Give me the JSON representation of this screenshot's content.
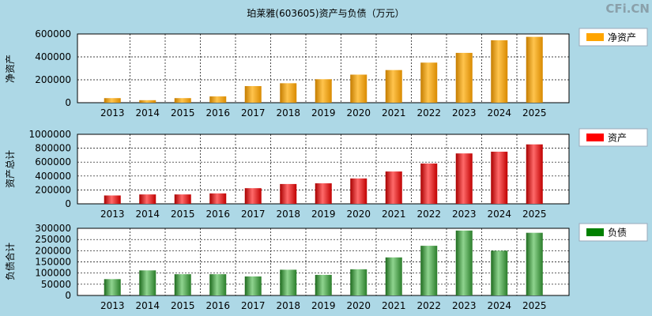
{
  "watermark": "CFi.CN",
  "chart_data": [
    {
      "type": "bar",
      "title": "珀莱雅(603605)资产与负债（万元）",
      "ylabel": "净资产",
      "legend": "净资产",
      "legend_position": "right",
      "color": "#ffa500",
      "categories": [
        "2013",
        "2014",
        "2015",
        "2016",
        "2017",
        "2018",
        "2019",
        "2020",
        "2021",
        "2022",
        "2023",
        "2024",
        "2025"
      ],
      "values": [
        40000,
        22000,
        40000,
        55000,
        145000,
        170000,
        205000,
        245000,
        285000,
        350000,
        435000,
        545000,
        575000
      ],
      "ylim": [
        0,
        600000
      ],
      "yticks": [
        0,
        200000,
        400000,
        600000
      ],
      "grid": true
    },
    {
      "type": "bar",
      "ylabel": "资产总计",
      "legend": "资产",
      "legend_position": "right",
      "color": "#ff0000",
      "categories": [
        "2013",
        "2014",
        "2015",
        "2016",
        "2017",
        "2018",
        "2019",
        "2020",
        "2021",
        "2022",
        "2023",
        "2024",
        "2025"
      ],
      "values": [
        120000,
        135000,
        135000,
        150000,
        225000,
        285000,
        295000,
        365000,
        465000,
        580000,
        725000,
        750000,
        855000
      ],
      "ylim": [
        0,
        1000000
      ],
      "yticks": [
        0,
        200000,
        400000,
        600000,
        800000,
        1000000
      ],
      "grid": true
    },
    {
      "type": "bar",
      "ylabel": "负债合计",
      "legend": "负债",
      "legend_position": "right",
      "color": "#008000",
      "categories": [
        "2013",
        "2014",
        "2015",
        "2016",
        "2017",
        "2018",
        "2019",
        "2020",
        "2021",
        "2022",
        "2023",
        "2024",
        "2025"
      ],
      "values": [
        73000,
        112000,
        95000,
        95000,
        85000,
        115000,
        92000,
        117000,
        170000,
        222000,
        290000,
        200000,
        280000
      ],
      "ylim": [
        0,
        300000
      ],
      "yticks": [
        0,
        50000,
        100000,
        150000,
        200000,
        250000,
        300000
      ],
      "grid": true
    }
  ]
}
